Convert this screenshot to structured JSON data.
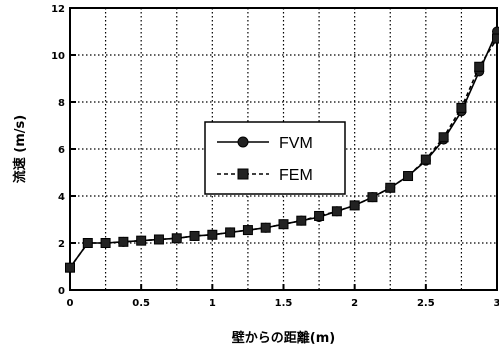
{
  "chart_data": {
    "type": "line",
    "title": "",
    "xlabel": "壁からの距離(m)",
    "ylabel": "流速 (m/s)",
    "xlim": [
      0,
      3
    ],
    "ylim": [
      0,
      12
    ],
    "x_ticks": [
      0,
      0.5,
      1,
      1.5,
      2,
      2.5,
      3
    ],
    "x_tick_labels": [
      "0",
      "0.5",
      "1",
      "1.5",
      "2",
      "2.5",
      "3"
    ],
    "y_ticks": [
      0,
      2,
      4,
      6,
      8,
      10,
      12
    ],
    "y_tick_labels": [
      "0",
      "2",
      "4",
      "6",
      "8",
      "10",
      "12"
    ],
    "grid": true,
    "legend_position": "center",
    "series": [
      {
        "name": "FVM",
        "marker": "circle",
        "line": "solid",
        "x": [
          0,
          0.125,
          0.25,
          0.375,
          0.5,
          0.625,
          0.75,
          0.875,
          1.0,
          1.125,
          1.25,
          1.375,
          1.5,
          1.625,
          1.75,
          1.875,
          2.0,
          2.125,
          2.25,
          2.375,
          2.5,
          2.625,
          2.75,
          2.875,
          3.0
        ],
        "y": [
          0.95,
          2.0,
          2.0,
          2.05,
          2.1,
          2.15,
          2.2,
          2.3,
          2.35,
          2.45,
          2.55,
          2.65,
          2.8,
          2.95,
          3.1,
          3.35,
          3.6,
          3.95,
          4.35,
          4.85,
          5.5,
          6.4,
          7.6,
          9.3,
          11.0
        ]
      },
      {
        "name": "FEM",
        "marker": "square",
        "line": "dashed",
        "x": [
          0,
          0.125,
          0.25,
          0.375,
          0.5,
          0.625,
          0.75,
          0.875,
          1.0,
          1.125,
          1.25,
          1.375,
          1.5,
          1.625,
          1.75,
          1.875,
          2.0,
          2.125,
          2.25,
          2.375,
          2.5,
          2.625,
          2.75,
          2.875,
          3.0
        ],
        "y": [
          0.95,
          2.0,
          2.0,
          2.05,
          2.1,
          2.15,
          2.2,
          2.3,
          2.35,
          2.45,
          2.55,
          2.65,
          2.8,
          2.95,
          3.15,
          3.35,
          3.6,
          3.95,
          4.35,
          4.85,
          5.55,
          6.5,
          7.75,
          9.5,
          10.7
        ]
      }
    ]
  }
}
